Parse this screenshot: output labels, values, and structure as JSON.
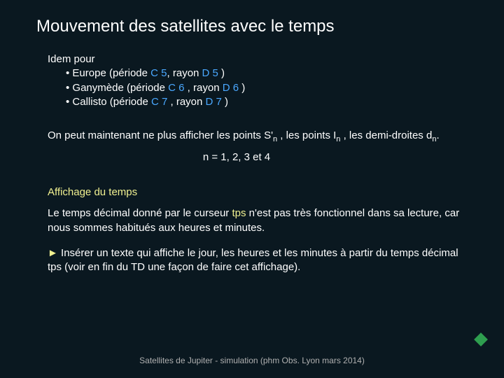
{
  "title": "Mouvement des satellites avec le temps",
  "idem": {
    "intro": "Idem pour",
    "europe_pre": "• Europe (période ",
    "europe_c": "C 5",
    "europe_mid": ", rayon ",
    "europe_d": "D 5",
    "europe_post": " )",
    "ganymede_pre": "• Ganymède  (période ",
    "ganymede_c": "C 6",
    "ganymede_mid": " , rayon ",
    "ganymede_d": "D 6",
    "ganymede_post": " )",
    "callisto_pre": "• Callisto (période ",
    "callisto_c": "C 7",
    "callisto_mid": " , rayon ",
    "callisto_d": "D 7",
    "callisto_post": " )"
  },
  "para2": {
    "t1": "On peut maintenant ne plus afficher les points S'",
    "n1": "n",
    "t2": " , les points I",
    "n2": "n",
    "t3": " , les demi-droites  d",
    "n3": "n",
    "t4": "."
  },
  "centered_n": "n = 1, 2, 3 et 4",
  "subhead": "Affichage du temps",
  "para3": {
    "t1": "Le temps décimal donné par le curseur ",
    "tps": "tps",
    "t2": "  n'est pas très fonctionnel dans sa lecture, car nous sommes habitués aux heures et minutes."
  },
  "para4": {
    "arrow": "►",
    "t1": " Insérer un texte qui affiche le jour, les heures et les minutes à partir du temps décimal tps (voir en fin du TD une façon de faire cet affichage)."
  },
  "footer": "Satellites de Jupiter - simulation (phm Obs. Lyon mars 2014)",
  "colors": {
    "background": "#0a1820",
    "text": "#ffffff",
    "cellref": "#4aa8ff",
    "accent": "#f0f090",
    "footer": "#b0b0b0",
    "diamond": "#2e9e4f"
  }
}
